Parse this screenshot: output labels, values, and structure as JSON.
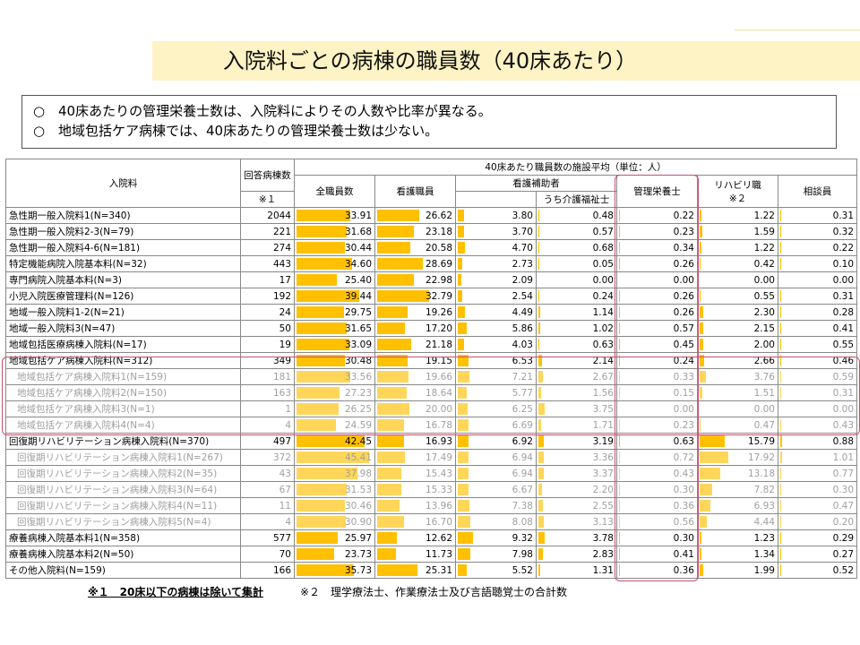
{
  "title": "入院料ごとの病棟の職員数（40床あたり）",
  "summary": [
    {
      "mark": "○",
      "text": "40床あたりの管理栄養士数は、入院料によりその人数や比率が異なる。"
    },
    {
      "mark": "○",
      "text": "地域包括ケア病棟では、40床あたりの管理栄養士数は少ない。"
    }
  ],
  "headers": {
    "nyuinryo": "入院料",
    "kaito_line1": "回答病棟数",
    "kaito_line2": "※１",
    "group": "40床あたり職員数の施設平均（単位：人）",
    "zen": "全職員数",
    "kango": "看護職員",
    "hojo": "看護補助者",
    "kaigo": "うち介護福祉士",
    "eiyo": "管理栄養士",
    "riha_line1": "リハビリ職",
    "riha_line2": "※２",
    "sodan": "相談員"
  },
  "rows": [
    {
      "label": "急性期一般入院料1(N=340)",
      "sub": false,
      "n": "2044",
      "zen": "33.91",
      "kango": "26.62",
      "hojo": "3.80",
      "kaigo": "0.48",
      "eiyo": "0.22",
      "riha": "1.22",
      "sodan": "0.31"
    },
    {
      "label": "急性期一般入院料2-3(N=79)",
      "sub": false,
      "n": "221",
      "zen": "31.68",
      "kango": "23.18",
      "hojo": "3.70",
      "kaigo": "0.57",
      "eiyo": "0.23",
      "riha": "1.59",
      "sodan": "0.32"
    },
    {
      "label": "急性期一般入院料4-6(N=181)",
      "sub": false,
      "n": "274",
      "zen": "30.44",
      "kango": "20.58",
      "hojo": "4.70",
      "kaigo": "0.68",
      "eiyo": "0.34",
      "riha": "1.22",
      "sodan": "0.22"
    },
    {
      "label": "特定機能病院入院基本料(N=32)",
      "sub": false,
      "n": "443",
      "zen": "34.60",
      "kango": "28.69",
      "hojo": "2.73",
      "kaigo": "0.05",
      "eiyo": "0.26",
      "riha": "0.42",
      "sodan": "0.10"
    },
    {
      "label": "専門病院入院基本料(N=3)",
      "sub": false,
      "n": "17",
      "zen": "25.40",
      "kango": "22.98",
      "hojo": "2.09",
      "kaigo": "0.00",
      "eiyo": "0.00",
      "riha": "0.00",
      "sodan": "0.00"
    },
    {
      "label": "小児入院医療管理料(N=126)",
      "sub": false,
      "n": "192",
      "zen": "39.44",
      "kango": "32.79",
      "hojo": "2.54",
      "kaigo": "0.24",
      "eiyo": "0.26",
      "riha": "0.55",
      "sodan": "0.31"
    },
    {
      "label": "地域一般入院料1-2(N=21)",
      "sub": false,
      "n": "24",
      "zen": "29.75",
      "kango": "19.26",
      "hojo": "4.49",
      "kaigo": "1.14",
      "eiyo": "0.26",
      "riha": "2.30",
      "sodan": "0.28"
    },
    {
      "label": "地域一般入院料3(N=47)",
      "sub": false,
      "n": "50",
      "zen": "31.65",
      "kango": "17.20",
      "hojo": "5.86",
      "kaigo": "1.02",
      "eiyo": "0.57",
      "riha": "2.15",
      "sodan": "0.41"
    },
    {
      "label": "地域包括医療病棟入院料(N=17)",
      "sub": false,
      "n": "19",
      "zen": "33.09",
      "kango": "21.18",
      "hojo": "4.03",
      "kaigo": "0.63",
      "eiyo": "0.45",
      "riha": "2.00",
      "sodan": "0.55"
    },
    {
      "label": "地域包括ケア病棟入院料(N=312)",
      "sub": false,
      "n": "349",
      "zen": "30.48",
      "kango": "19.15",
      "hojo": "6.53",
      "kaigo": "2.14",
      "eiyo": "0.24",
      "riha": "2.66",
      "sodan": "0.46"
    },
    {
      "label": "地域包括ケア病棟入院料1(N=159)",
      "sub": true,
      "n": "181",
      "zen": "33.56",
      "kango": "19.66",
      "hojo": "7.21",
      "kaigo": "2.67",
      "eiyo": "0.33",
      "riha": "3.76",
      "sodan": "0.59"
    },
    {
      "label": "地域包括ケア病棟入院料2(N=150)",
      "sub": true,
      "n": "163",
      "zen": "27.23",
      "kango": "18.64",
      "hojo": "5.77",
      "kaigo": "1.56",
      "eiyo": "0.15",
      "riha": "1.51",
      "sodan": "0.31"
    },
    {
      "label": "地域包括ケア病棟入院料3(N=1)",
      "sub": true,
      "n": "1",
      "zen": "26.25",
      "kango": "20.00",
      "hojo": "6.25",
      "kaigo": "3.75",
      "eiyo": "0.00",
      "riha": "0.00",
      "sodan": "0.00"
    },
    {
      "label": "地域包括ケア病棟入院料4(N=4)",
      "sub": true,
      "n": "4",
      "zen": "24.59",
      "kango": "16.78",
      "hojo": "6.69",
      "kaigo": "1.71",
      "eiyo": "0.23",
      "riha": "0.47",
      "sodan": "0.43"
    },
    {
      "label": "回復期リハビリテーション病棟入院料(N=370)",
      "sub": false,
      "n": "497",
      "zen": "42.45",
      "kango": "16.93",
      "hojo": "6.92",
      "kaigo": "3.19",
      "eiyo": "0.63",
      "riha": "15.79",
      "sodan": "0.88"
    },
    {
      "label": "回復期リハビリテーション病棟入院料1(N=267)",
      "sub": true,
      "n": "372",
      "zen": "45.41",
      "kango": "17.49",
      "hojo": "6.94",
      "kaigo": "3.36",
      "eiyo": "0.72",
      "riha": "17.92",
      "sodan": "1.01"
    },
    {
      "label": "回復期リハビリテーション病棟入院料2(N=35)",
      "sub": true,
      "n": "43",
      "zen": "37.98",
      "kango": "15.43",
      "hojo": "6.94",
      "kaigo": "3.37",
      "eiyo": "0.43",
      "riha": "13.18",
      "sodan": "0.77"
    },
    {
      "label": "回復期リハビリテーション病棟入院料3(N=64)",
      "sub": true,
      "n": "67",
      "zen": "31.53",
      "kango": "15.33",
      "hojo": "6.67",
      "kaigo": "2.20",
      "eiyo": "0.30",
      "riha": "7.82",
      "sodan": "0.30"
    },
    {
      "label": "回復期リハビリテーション病棟入院料4(N=11)",
      "sub": true,
      "n": "11",
      "zen": "30.46",
      "kango": "13.96",
      "hojo": "7.38",
      "kaigo": "2.55",
      "eiyo": "0.36",
      "riha": "6.93",
      "sodan": "0.47"
    },
    {
      "label": "回復期リハビリテーション病棟入院料5(N=4)",
      "sub": true,
      "n": "4",
      "zen": "30.90",
      "kango": "16.70",
      "hojo": "8.08",
      "kaigo": "3.13",
      "eiyo": "0.56",
      "riha": "4.44",
      "sodan": "0.20"
    },
    {
      "label": "療養病棟入院基本料1(N=358)",
      "sub": false,
      "n": "577",
      "zen": "25.97",
      "kango": "12.62",
      "hojo": "9.32",
      "kaigo": "3.78",
      "eiyo": "0.30",
      "riha": "1.23",
      "sodan": "0.29"
    },
    {
      "label": "療養病棟入院基本料2(N=50)",
      "sub": false,
      "n": "70",
      "zen": "23.73",
      "kango": "11.73",
      "hojo": "7.98",
      "kaigo": "2.83",
      "eiyo": "0.41",
      "riha": "1.34",
      "sodan": "0.27"
    },
    {
      "label": "その他入院料(N=159)",
      "sub": false,
      "n": "166",
      "zen": "35.73",
      "kango": "25.31",
      "hojo": "5.52",
      "kaigo": "1.31",
      "eiyo": "0.36",
      "riha": "1.99",
      "sodan": "0.52"
    }
  ],
  "bar_max": {
    "zen": 50,
    "kango": 50,
    "hojo": 50,
    "kaigo": 50,
    "eiyo": 50,
    "riha": 50,
    "sodan": 50
  },
  "footnotes": {
    "note1": "※１　20床以下の病棟は除いて集計",
    "note2": "※２　理学療法士、作業療法士及び言語聴覚士の合計数"
  },
  "colors": {
    "bar": "#ffc000",
    "highlight": "#c8506e",
    "title_bg": "#fdf3c4"
  }
}
